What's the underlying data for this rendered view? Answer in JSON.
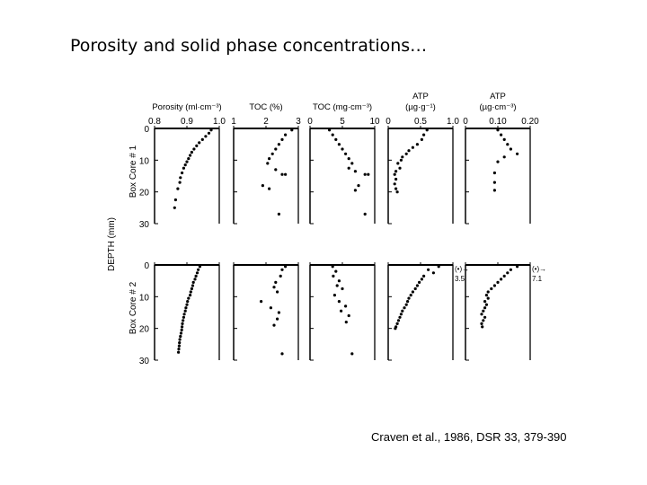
{
  "slide": {
    "title": "Porosity and solid phase concentrations…",
    "citation": "Craven et al., 1986, DSR 33, 379-390"
  },
  "chart_data": {
    "type": "scatter",
    "ylabel": "DEPTH (mm)",
    "ylim": [
      0,
      30
    ],
    "yticks": [
      0,
      10,
      20,
      30
    ],
    "rows": [
      {
        "label": "Box Core # 1",
        "tick_labels": [
          "0",
          "10",
          "20",
          "30"
        ]
      },
      {
        "label": "Box Core # 2",
        "tick_labels": [
          "0",
          "10",
          "20",
          "30"
        ]
      }
    ],
    "columns": [
      {
        "header": [
          "Porosity (ml·cm⁻³)"
        ],
        "xlim": [
          0.8,
          1.0
        ],
        "xticks": [
          0.8,
          0.9,
          1.0
        ],
        "xtick_labels": [
          "0.8",
          "0.9",
          "1.0"
        ]
      },
      {
        "header": [
          "TOC (%)"
        ],
        "xlim": [
          1,
          3
        ],
        "xticks": [
          1,
          2,
          3
        ],
        "xtick_labels": [
          "1",
          "2",
          "3"
        ]
      },
      {
        "header": [
          "TOC (mg·cm⁻³)"
        ],
        "xlim": [
          0,
          10
        ],
        "xticks": [
          0,
          5,
          10
        ],
        "xtick_labels": [
          "0",
          "5",
          "10"
        ]
      },
      {
        "header": [
          "ATP",
          "(µg·g⁻¹)"
        ],
        "xlim": [
          0,
          1.0
        ],
        "xticks": [
          0,
          0.5,
          1.0
        ],
        "xtick_labels": [
          "0",
          "0.5",
          "1.0"
        ]
      },
      {
        "header": [
          "ATP",
          "(µg·cm⁻³)"
        ],
        "xlim": [
          0,
          0.2
        ],
        "xticks": [
          0,
          0.1,
          0.2
        ],
        "xtick_labels": [
          "0",
          "0.10",
          "0.20"
        ]
      }
    ],
    "annotations": [
      {
        "row": 1,
        "col": 3,
        "lines": [
          "(•)→",
          "3.5"
        ]
      },
      {
        "row": 1,
        "col": 4,
        "lines": [
          "(•)→",
          "7.1"
        ]
      }
    ],
    "panels": [
      {
        "row": 0,
        "col": 0,
        "points": [
          [
            0.975,
            0.5
          ],
          [
            0.968,
            1.5
          ],
          [
            0.958,
            2.5
          ],
          [
            0.948,
            3.5
          ],
          [
            0.938,
            4.5
          ],
          [
            0.93,
            5.5
          ],
          [
            0.922,
            6.5
          ],
          [
            0.915,
            7.5
          ],
          [
            0.91,
            8.5
          ],
          [
            0.905,
            9.5
          ],
          [
            0.9,
            10.5
          ],
          [
            0.895,
            11.5
          ],
          [
            0.89,
            12.5
          ],
          [
            0.885,
            14
          ],
          [
            0.88,
            15.5
          ],
          [
            0.878,
            17
          ],
          [
            0.872,
            19
          ],
          [
            0.865,
            22.5
          ],
          [
            0.862,
            25
          ]
        ]
      },
      {
        "row": 0,
        "col": 1,
        "points": [
          [
            2.8,
            0.5
          ],
          [
            2.6,
            2
          ],
          [
            2.5,
            3.5
          ],
          [
            2.4,
            5
          ],
          [
            2.3,
            6.5
          ],
          [
            2.2,
            8
          ],
          [
            2.1,
            9.5
          ],
          [
            2.05,
            11
          ],
          [
            2.3,
            13
          ],
          [
            2.5,
            14.5
          ],
          [
            2.6,
            14.5
          ],
          [
            1.9,
            18
          ],
          [
            2.1,
            19
          ],
          [
            2.4,
            27
          ]
        ]
      },
      {
        "row": 0,
        "col": 2,
        "points": [
          [
            3.0,
            0.5
          ],
          [
            3.5,
            2
          ],
          [
            4.0,
            3.5
          ],
          [
            4.5,
            5
          ],
          [
            5.0,
            6.5
          ],
          [
            5.5,
            8
          ],
          [
            6.0,
            9.5
          ],
          [
            6.5,
            11
          ],
          [
            6.0,
            12.5
          ],
          [
            7.0,
            13.5
          ],
          [
            8.5,
            14.5
          ],
          [
            9.0,
            14.5
          ],
          [
            7.5,
            18
          ],
          [
            7.0,
            19.5
          ],
          [
            8.5,
            27
          ]
        ]
      },
      {
        "row": 0,
        "col": 3,
        "points": [
          [
            0.6,
            0.5
          ],
          [
            0.55,
            2
          ],
          [
            0.52,
            3.5
          ],
          [
            0.45,
            5
          ],
          [
            0.38,
            6
          ],
          [
            0.32,
            7
          ],
          [
            0.28,
            8
          ],
          [
            0.22,
            9
          ],
          [
            0.2,
            10
          ],
          [
            0.15,
            11
          ],
          [
            0.18,
            12.5
          ],
          [
            0.12,
            13.5
          ],
          [
            0.1,
            14.5
          ],
          [
            0.12,
            16
          ],
          [
            0.1,
            17.5
          ],
          [
            0.12,
            19
          ],
          [
            0.14,
            20
          ]
        ]
      },
      {
        "row": 0,
        "col": 4,
        "points": [
          [
            0.1,
            0.5
          ],
          [
            0.11,
            2
          ],
          [
            0.12,
            3.5
          ],
          [
            0.13,
            5
          ],
          [
            0.14,
            6.5
          ],
          [
            0.16,
            8
          ],
          [
            0.12,
            9
          ],
          [
            0.1,
            10.5
          ],
          [
            0.09,
            14
          ],
          [
            0.09,
            17
          ],
          [
            0.09,
            19.5
          ]
        ]
      },
      {
        "row": 1,
        "col": 0,
        "points": [
          [
            0.94,
            0.5
          ],
          [
            0.935,
            1.5
          ],
          [
            0.932,
            2.5
          ],
          [
            0.928,
            3.5
          ],
          [
            0.925,
            4.5
          ],
          [
            0.92,
            5.5
          ],
          [
            0.918,
            6.5
          ],
          [
            0.915,
            7.5
          ],
          [
            0.912,
            8.5
          ],
          [
            0.91,
            9.5
          ],
          [
            0.905,
            10.5
          ],
          [
            0.902,
            11.5
          ],
          [
            0.9,
            12.5
          ],
          [
            0.897,
            13.5
          ],
          [
            0.895,
            14.5
          ],
          [
            0.892,
            15.5
          ],
          [
            0.89,
            16.5
          ],
          [
            0.888,
            17.5
          ],
          [
            0.886,
            18.5
          ],
          [
            0.885,
            19.5
          ],
          [
            0.884,
            20.5
          ],
          [
            0.882,
            21.5
          ],
          [
            0.88,
            22.5
          ],
          [
            0.878,
            23.5
          ],
          [
            0.877,
            24.5
          ],
          [
            0.876,
            25.5
          ],
          [
            0.875,
            26.5
          ],
          [
            0.874,
            27.5
          ]
        ]
      },
      {
        "row": 1,
        "col": 1,
        "points": [
          [
            2.6,
            0.5
          ],
          [
            2.5,
            1.5
          ],
          [
            2.45,
            3.5
          ],
          [
            2.3,
            5.5
          ],
          [
            2.25,
            7
          ],
          [
            2.35,
            8.5
          ],
          [
            1.85,
            11.5
          ],
          [
            2.15,
            13.5
          ],
          [
            2.4,
            15
          ],
          [
            2.35,
            17
          ],
          [
            2.25,
            19
          ],
          [
            2.5,
            28
          ]
        ]
      },
      {
        "row": 1,
        "col": 2,
        "points": [
          [
            3.5,
            0.5
          ],
          [
            4.0,
            2
          ],
          [
            3.6,
            3.5
          ],
          [
            4.5,
            5
          ],
          [
            4.2,
            6.5
          ],
          [
            5.0,
            7.5
          ],
          [
            3.8,
            9.5
          ],
          [
            4.5,
            11.5
          ],
          [
            5.5,
            13
          ],
          [
            4.8,
            14.5
          ],
          [
            6.0,
            16
          ],
          [
            5.6,
            18
          ],
          [
            6.5,
            28
          ]
        ]
      },
      {
        "row": 1,
        "col": 3,
        "points": [
          [
            0.78,
            0.5
          ],
          [
            0.62,
            1.5
          ],
          [
            0.7,
            2.5
          ],
          [
            0.55,
            3.5
          ],
          [
            0.52,
            4.5
          ],
          [
            0.48,
            5.5
          ],
          [
            0.45,
            6.5
          ],
          [
            0.42,
            7.5
          ],
          [
            0.38,
            8.5
          ],
          [
            0.35,
            9.5
          ],
          [
            0.32,
            10.5
          ],
          [
            0.3,
            11.5
          ],
          [
            0.28,
            12.5
          ],
          [
            0.25,
            13.5
          ],
          [
            0.22,
            14.5
          ],
          [
            0.2,
            15.5
          ],
          [
            0.18,
            16.5
          ],
          [
            0.16,
            17.5
          ],
          [
            0.14,
            18.5
          ],
          [
            0.12,
            19.5
          ],
          [
            0.11,
            20
          ]
        ]
      },
      {
        "row": 1,
        "col": 4,
        "points": [
          [
            0.16,
            0.5
          ],
          [
            0.14,
            1.5
          ],
          [
            0.13,
            2.5
          ],
          [
            0.12,
            3.5
          ],
          [
            0.11,
            4.5
          ],
          [
            0.1,
            5.5
          ],
          [
            0.09,
            6.5
          ],
          [
            0.08,
            7.5
          ],
          [
            0.07,
            8.5
          ],
          [
            0.065,
            9.5
          ],
          [
            0.07,
            10.5
          ],
          [
            0.06,
            11.5
          ],
          [
            0.065,
            12.5
          ],
          [
            0.06,
            13.5
          ],
          [
            0.055,
            14.5
          ],
          [
            0.05,
            15.5
          ],
          [
            0.06,
            16.5
          ],
          [
            0.055,
            17.5
          ],
          [
            0.05,
            18.5
          ],
          [
            0.052,
            19.5
          ]
        ]
      }
    ]
  }
}
